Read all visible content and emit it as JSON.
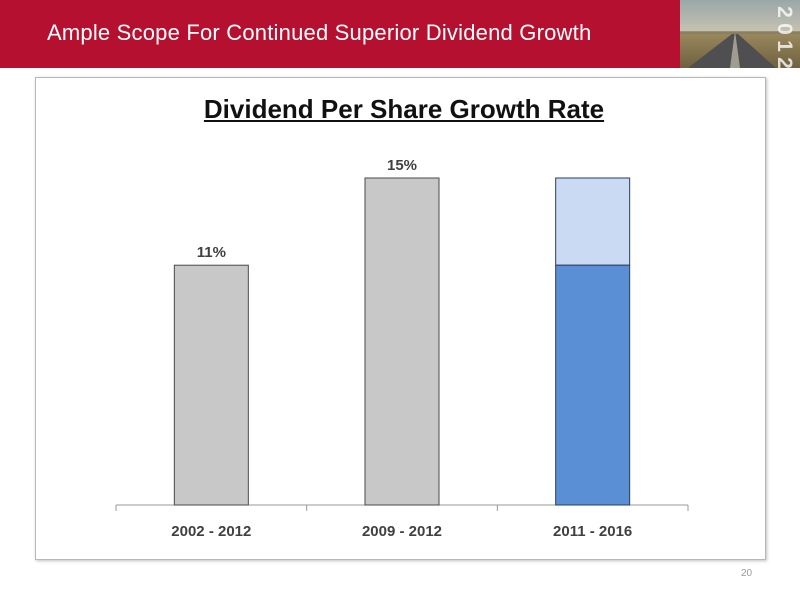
{
  "header": {
    "title": "Ample Scope For Continued Superior Dividend Growth",
    "year_digits": [
      "2",
      "0",
      "1",
      "2"
    ],
    "brand_color": "#b5102f"
  },
  "chart_data": {
    "type": "bar",
    "title": "Dividend Per Share Growth Rate",
    "xlabel": "",
    "ylabel": "",
    "categories": [
      "2002 - 2012",
      "2009 - 2012",
      "2011 - 2016"
    ],
    "ylim": [
      0,
      17
    ],
    "bars": [
      {
        "category": "2002 - 2012",
        "value": 11,
        "label": "11%",
        "color": "#c8c8c8"
      },
      {
        "category": "2009 - 2012",
        "value": 15,
        "label": "15%",
        "color": "#c8c8c8"
      },
      {
        "category": "2011 - 2016",
        "value": 11,
        "label": "",
        "color": "#5a8fd6",
        "range_top": 15,
        "range_color": "#c9daf2"
      }
    ],
    "legend": false,
    "grid": false
  },
  "page_number": "20"
}
